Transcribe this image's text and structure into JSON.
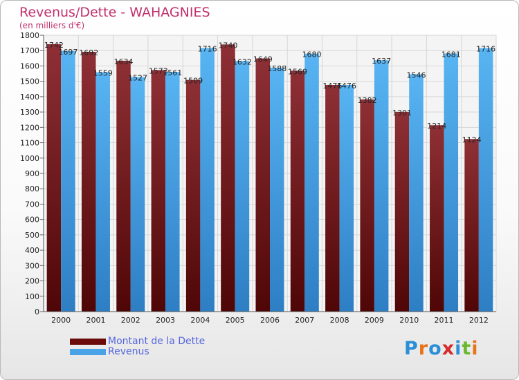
{
  "chart_data": {
    "type": "bar",
    "title": "Revenus/Dette - WAHAGNIES",
    "subtitle": "(en milliers d'€)",
    "categories": [
      "2000",
      "2001",
      "2002",
      "2003",
      "2004",
      "2005",
      "2006",
      "2007",
      "2008",
      "2009",
      "2010",
      "2011",
      "2012"
    ],
    "series": [
      {
        "name": "Montant de la Dette",
        "color": "#7a1f22",
        "values": [
          1742,
          1692,
          1634,
          1573,
          1509,
          1740,
          1649,
          1569,
          1476,
          1382,
          1301,
          1214,
          1124
        ]
      },
      {
        "name": "Revenus",
        "color": "#4aa3e6",
        "values": [
          1697,
          1559,
          1527,
          1561,
          1716,
          1632,
          1588,
          1680,
          1476,
          1637,
          1546,
          1681,
          1716
        ]
      }
    ],
    "ylim": [
      0,
      1800
    ],
    "ytick_step": 100,
    "grid": true,
    "legend_position": "bottom-left"
  },
  "logo": {
    "text": "Proxiti",
    "colors": [
      "#2a8fd6",
      "#e8731a",
      "#2a8fd6",
      "#d62b2b",
      "#2a8fd6",
      "#6ab82f",
      "#e8731a"
    ]
  }
}
